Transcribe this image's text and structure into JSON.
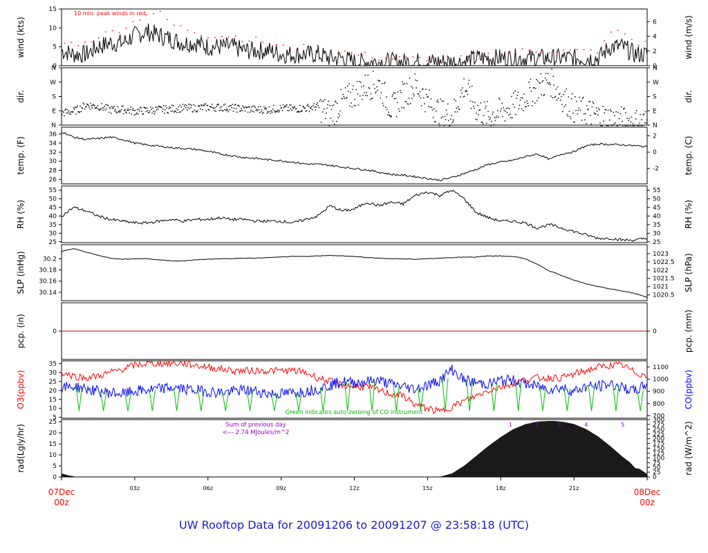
{
  "title": "UW Rooftop Data for 20091206  to  20091207 @ 23:58:18  (UTC)",
  "colors": {
    "frame": "#000000",
    "red": "#ff0000",
    "blue": "#0000ff",
    "green": "#00bb00",
    "purple": "#9900cc",
    "zero_line": "#cc0000"
  },
  "chart_data": [
    {
      "type": "line",
      "name": "wind",
      "ylabel_left": "wind (kts)",
      "ylabel_right": "wind (m/s)",
      "ylim": [
        0,
        15
      ],
      "yticks": [
        0,
        5,
        10,
        15
      ],
      "right_ylim": [
        0,
        7.72
      ],
      "right_yticks": [
        0,
        2,
        4,
        6
      ],
      "annotation": "10 min. peak winds in red",
      "x_hours": [
        0,
        0.5,
        1,
        1.5,
        2,
        2.5,
        3,
        3.5,
        4,
        4.5,
        5,
        5.5,
        6,
        6.5,
        7,
        7.5,
        8,
        8.5,
        9,
        9.5,
        10,
        10.5,
        11,
        11.5,
        12,
        12.5,
        13,
        13.5,
        14,
        14.5,
        15,
        15.5,
        16,
        16.5,
        17,
        17.5,
        18,
        18.5,
        19,
        19.5,
        20,
        20.5,
        21,
        21.5,
        22,
        22.5,
        23,
        23.5,
        24
      ],
      "values": [
        4,
        3,
        3,
        5,
        6,
        6,
        8,
        9,
        8,
        7,
        6,
        6,
        5,
        5,
        5,
        4,
        4,
        4,
        3,
        3,
        3,
        3,
        2,
        2,
        1,
        1,
        1,
        1,
        1,
        1,
        1,
        1,
        1,
        1,
        2,
        2,
        2,
        2,
        2,
        2,
        2,
        2,
        2,
        2,
        2,
        5,
        5,
        3,
        3
      ],
      "peaks": [
        6,
        6,
        6,
        8,
        9,
        10,
        12,
        14,
        14,
        11,
        10,
        9,
        8,
        8,
        8,
        7,
        7,
        6,
        5,
        5,
        5,
        5,
        4,
        4,
        3,
        3,
        2,
        2,
        2,
        2,
        2,
        2,
        2,
        2,
        3,
        3,
        3,
        4,
        4,
        4,
        4,
        4,
        4,
        4,
        4,
        9,
        9,
        6,
        6
      ]
    },
    {
      "type": "scatter",
      "name": "dir",
      "ylabel_left": "dir.",
      "ylabel_right": "dir.",
      "ylim": [
        0,
        360
      ],
      "ytick_labels": [
        "N",
        "E",
        "S",
        "W",
        "N"
      ],
      "yticks": [
        0,
        90,
        180,
        270,
        360
      ],
      "x_hours": [
        0,
        0.5,
        1,
        1.5,
        2,
        2.5,
        3,
        3.5,
        4,
        4.5,
        5,
        5.5,
        6,
        6.5,
        7,
        7.5,
        8,
        8.5,
        9,
        9.5,
        10,
        10.5,
        11,
        11.5,
        12,
        12.5,
        13,
        13.5,
        14,
        14.5,
        15,
        15.5,
        16,
        16.5,
        17,
        17.5,
        18,
        18.5,
        19,
        19.5,
        20,
        20.5,
        21,
        21.5,
        22,
        22.5,
        23,
        23.5,
        24
      ],
      "values": [
        80,
        90,
        130,
        120,
        100,
        100,
        90,
        95,
        100,
        105,
        110,
        110,
        115,
        115,
        110,
        105,
        100,
        100,
        110,
        105,
        110,
        120,
        70,
        150,
        200,
        250,
        260,
        100,
        200,
        250,
        150,
        80,
        60,
        250,
        100,
        60,
        90,
        120,
        180,
        240,
        280,
        180,
        100,
        90,
        60,
        40,
        30,
        20,
        20
      ]
    },
    {
      "type": "line",
      "name": "temp",
      "ylabel_left": "temp. (F)",
      "ylabel_right": "temp. (C)",
      "ylim": [
        25,
        37.5
      ],
      "yticks": [
        26,
        28,
        30,
        32,
        34,
        36
      ],
      "right_ylim": [
        -3.89,
        3.06
      ],
      "right_yticks": [
        -2,
        0,
        2
      ],
      "x_hours": [
        0,
        0.5,
        1,
        1.5,
        2,
        2.5,
        3,
        3.5,
        4,
        4.5,
        5,
        5.5,
        6,
        6.5,
        7,
        7.5,
        8,
        8.5,
        9,
        9.5,
        10,
        10.5,
        11,
        11.5,
        12,
        12.5,
        13,
        13.5,
        14,
        14.5,
        15,
        15.5,
        16,
        16.5,
        17,
        17.5,
        18,
        18.5,
        19,
        19.5,
        20,
        20.5,
        21,
        21.5,
        22,
        22.5,
        23,
        23.5,
        24
      ],
      "values": [
        36.5,
        35.3,
        34.8,
        35.0,
        35.3,
        34.8,
        34.0,
        33.6,
        33.3,
        33.0,
        32.8,
        32.6,
        32.2,
        31.6,
        31.2,
        30.8,
        30.6,
        30.3,
        30.1,
        29.8,
        29.4,
        29.3,
        29.1,
        28.7,
        28.4,
        28.1,
        27.6,
        27.1,
        26.9,
        26.6,
        26.2,
        25.8,
        26.4,
        27.3,
        28.2,
        29.3,
        29.8,
        30.2,
        31.0,
        31.6,
        30.4,
        31.6,
        32.1,
        33.4,
        33.8,
        33.7,
        33.6,
        33.4,
        33.2
      ]
    },
    {
      "type": "line",
      "name": "rh",
      "ylabel_left": "RH (%)",
      "ylabel_right": "RH (%)",
      "ylim": [
        24.5,
        57.5
      ],
      "yticks": [
        25,
        30,
        35,
        40,
        45,
        50,
        55
      ],
      "right_ylim": [
        24.5,
        57.5
      ],
      "right_yticks": [
        25,
        30,
        35,
        40,
        45,
        50,
        55
      ],
      "x_hours": [
        0,
        0.5,
        1,
        1.5,
        2,
        2.5,
        3,
        3.5,
        4,
        4.5,
        5,
        5.5,
        6,
        6.5,
        7,
        7.5,
        8,
        8.5,
        9,
        9.5,
        10,
        10.5,
        11,
        11.5,
        12,
        12.5,
        13,
        13.5,
        14,
        14.5,
        15,
        15.5,
        16,
        16.5,
        17,
        17.5,
        18,
        18.5,
        19,
        19.5,
        20,
        20.5,
        21,
        21.5,
        22,
        22.5,
        23,
        23.5,
        24
      ],
      "values": [
        40,
        45,
        43,
        40,
        38,
        37,
        36,
        36,
        37,
        38,
        37,
        38,
        38,
        39,
        38,
        38,
        37,
        37,
        37,
        36,
        38,
        40,
        46,
        43,
        44,
        48,
        46,
        48,
        47,
        52,
        54,
        52,
        55,
        50,
        42,
        39,
        37,
        37,
        36,
        33,
        35,
        33,
        31,
        29,
        27,
        27,
        26,
        26,
        27
      ]
    },
    {
      "type": "line",
      "name": "slp",
      "ylabel_left": "SLP (inHg)",
      "ylabel_right": "SLP (hPa)",
      "ylim": [
        30.125,
        30.225
      ],
      "yticks": [
        30.14,
        30.16,
        30.18,
        30.2
      ],
      "right_ylim": [
        1020.15,
        1023.54
      ],
      "right_yticks": [
        1020.5,
        1021,
        1021.5,
        1022,
        1022.5,
        1023
      ],
      "right_ytick_labels": [
        "1020.5",
        "1021",
        "1021.5",
        "1022",
        "1022.5",
        "1023"
      ],
      "x_hours": [
        0,
        0.5,
        1,
        1.5,
        2,
        2.5,
        3,
        3.5,
        4,
        4.5,
        5,
        5.5,
        6,
        6.5,
        7,
        7.5,
        8,
        8.5,
        9,
        9.5,
        10,
        10.5,
        11,
        11.5,
        12,
        12.5,
        13,
        13.5,
        14,
        14.5,
        15,
        15.5,
        16,
        16.5,
        17,
        17.5,
        18,
        18.5,
        19,
        19.5,
        20,
        20.5,
        21,
        21.5,
        22,
        22.5,
        23,
        23.5,
        24
      ],
      "values": [
        30.213,
        30.218,
        30.212,
        30.206,
        30.201,
        30.199,
        30.2,
        30.2,
        30.198,
        30.196,
        30.196,
        30.198,
        30.199,
        30.2,
        30.2,
        30.201,
        30.201,
        30.202,
        30.203,
        30.204,
        30.204,
        30.205,
        30.206,
        30.205,
        30.204,
        30.202,
        30.201,
        30.2,
        30.2,
        30.199,
        30.2,
        30.201,
        30.202,
        30.203,
        30.203,
        30.205,
        30.205,
        30.204,
        30.2,
        30.19,
        30.178,
        30.17,
        30.162,
        30.155,
        30.15,
        30.146,
        30.142,
        30.138,
        30.131
      ]
    },
    {
      "type": "line",
      "name": "pcp",
      "ylabel_left": "pcp. (in)",
      "ylabel_right": "pcp. (mm)",
      "ylim": [
        -1,
        1
      ],
      "yticks": [
        0
      ],
      "right_yticks": [
        0
      ],
      "x_hours": [
        0,
        24
      ],
      "values": [
        0,
        0
      ]
    },
    {
      "type": "line",
      "name": "o3_co",
      "ylabel_left": "O3(ppbv)",
      "ylabel_right": "CO(ppbv)",
      "ylim": [
        4.5,
        36.5
      ],
      "yticks": [
        5,
        10,
        15,
        20,
        25,
        30,
        35
      ],
      "right_ylim": [
        680,
        1150
      ],
      "right_yticks": [
        700,
        800,
        900,
        1000,
        1100
      ],
      "annotation": "Green indicates auto-zeroing of CO instrument",
      "x_hours": [
        0,
        0.5,
        1,
        1.5,
        2,
        2.5,
        3,
        3.5,
        4,
        4.5,
        5,
        5.5,
        6,
        6.5,
        7,
        7.5,
        8,
        8.5,
        9,
        9.5,
        10,
        10.5,
        11,
        11.5,
        12,
        12.5,
        13,
        13.5,
        14,
        14.5,
        15,
        15.5,
        16,
        16.5,
        17,
        17.5,
        18,
        18.5,
        19,
        19.5,
        20,
        20.5,
        21,
        21.5,
        22,
        22.5,
        23,
        23.5,
        24
      ],
      "series": [
        {
          "name": "O3",
          "values": [
            30,
            28,
            27,
            28,
            30,
            32,
            34,
            35,
            35,
            35,
            35,
            34,
            33,
            32,
            31,
            31,
            31,
            31,
            31,
            31,
            30,
            27,
            25,
            23,
            22,
            22,
            20,
            18,
            17,
            12,
            10,
            8,
            11,
            14,
            17,
            20,
            22,
            24,
            26,
            27,
            27,
            27,
            29,
            31,
            33,
            34,
            34,
            30,
            28
          ]
        },
        {
          "name": "CO",
          "values": [
            930,
            940,
            920,
            900,
            890,
            880,
            900,
            910,
            920,
            930,
            920,
            910,
            900,
            890,
            900,
            910,
            900,
            880,
            880,
            890,
            900,
            920,
            950,
            980,
            970,
            980,
            990,
            960,
            940,
            920,
            950,
            990,
            1080,
            990,
            970,
            960,
            990,
            990,
            960,
            940,
            920,
            930,
            900,
            940,
            940,
            960,
            930,
            900,
            960
          ]
        }
      ]
    },
    {
      "type": "area",
      "name": "rad",
      "ylabel_left": "rad(Lgly/hr)",
      "ylabel_right": "rad (W/m^2)",
      "ylim": [
        0,
        26
      ],
      "yticks": [
        0,
        5,
        10,
        15,
        20,
        25
      ],
      "right_ylim": [
        0,
        300
      ],
      "right_yticks": [
        0,
        25,
        50,
        75,
        100,
        125,
        150,
        175,
        200,
        225,
        250,
        275,
        300
      ],
      "annotation_lines": [
        "Sum of previous day",
        "<--- 2.74 MJoules/m^2"
      ],
      "marker_labels": [
        {
          "label": "1",
          "hour": 18.4
        },
        {
          "label": "2",
          "hour": 19.5
        },
        {
          "label": "3",
          "hour": 20.4
        },
        {
          "label": "4",
          "hour": 21.5
        },
        {
          "label": "5",
          "hour": 23.0
        }
      ],
      "x_hours": [
        0,
        0.3,
        0.6,
        14,
        15.5,
        16.0,
        16.5,
        17,
        17.5,
        18,
        18.5,
        19,
        19.5,
        20,
        20.3,
        20.6,
        21,
        21.5,
        22,
        22.5,
        23,
        23.3,
        23.5,
        23.7,
        24
      ],
      "values": [
        1.5,
        0.6,
        0,
        0,
        0,
        1.5,
        5,
        9.5,
        14,
        18,
        21.5,
        23.8,
        25.0,
        25.3,
        25.2,
        24.8,
        23.9,
        21.6,
        18.2,
        13.8,
        9.0,
        6.5,
        4.0,
        3.5,
        1.2
      ]
    }
  ],
  "x_axis": {
    "range": [
      0,
      24
    ],
    "ticks": [
      {
        "hour": 0,
        "label": ""
      },
      {
        "hour": 3,
        "label": "03z"
      },
      {
        "hour": 6,
        "label": "06z"
      },
      {
        "hour": 9,
        "label": "09z"
      },
      {
        "hour": 12,
        "label": "12z"
      },
      {
        "hour": 15,
        "label": "15z"
      },
      {
        "hour": 18,
        "label": "18z"
      },
      {
        "hour": 21,
        "label": "21z"
      },
      {
        "hour": 24,
        "label": ""
      }
    ],
    "start_label": [
      "07Dec",
      "00z"
    ],
    "end_label": [
      "08Dec",
      "00z"
    ]
  }
}
